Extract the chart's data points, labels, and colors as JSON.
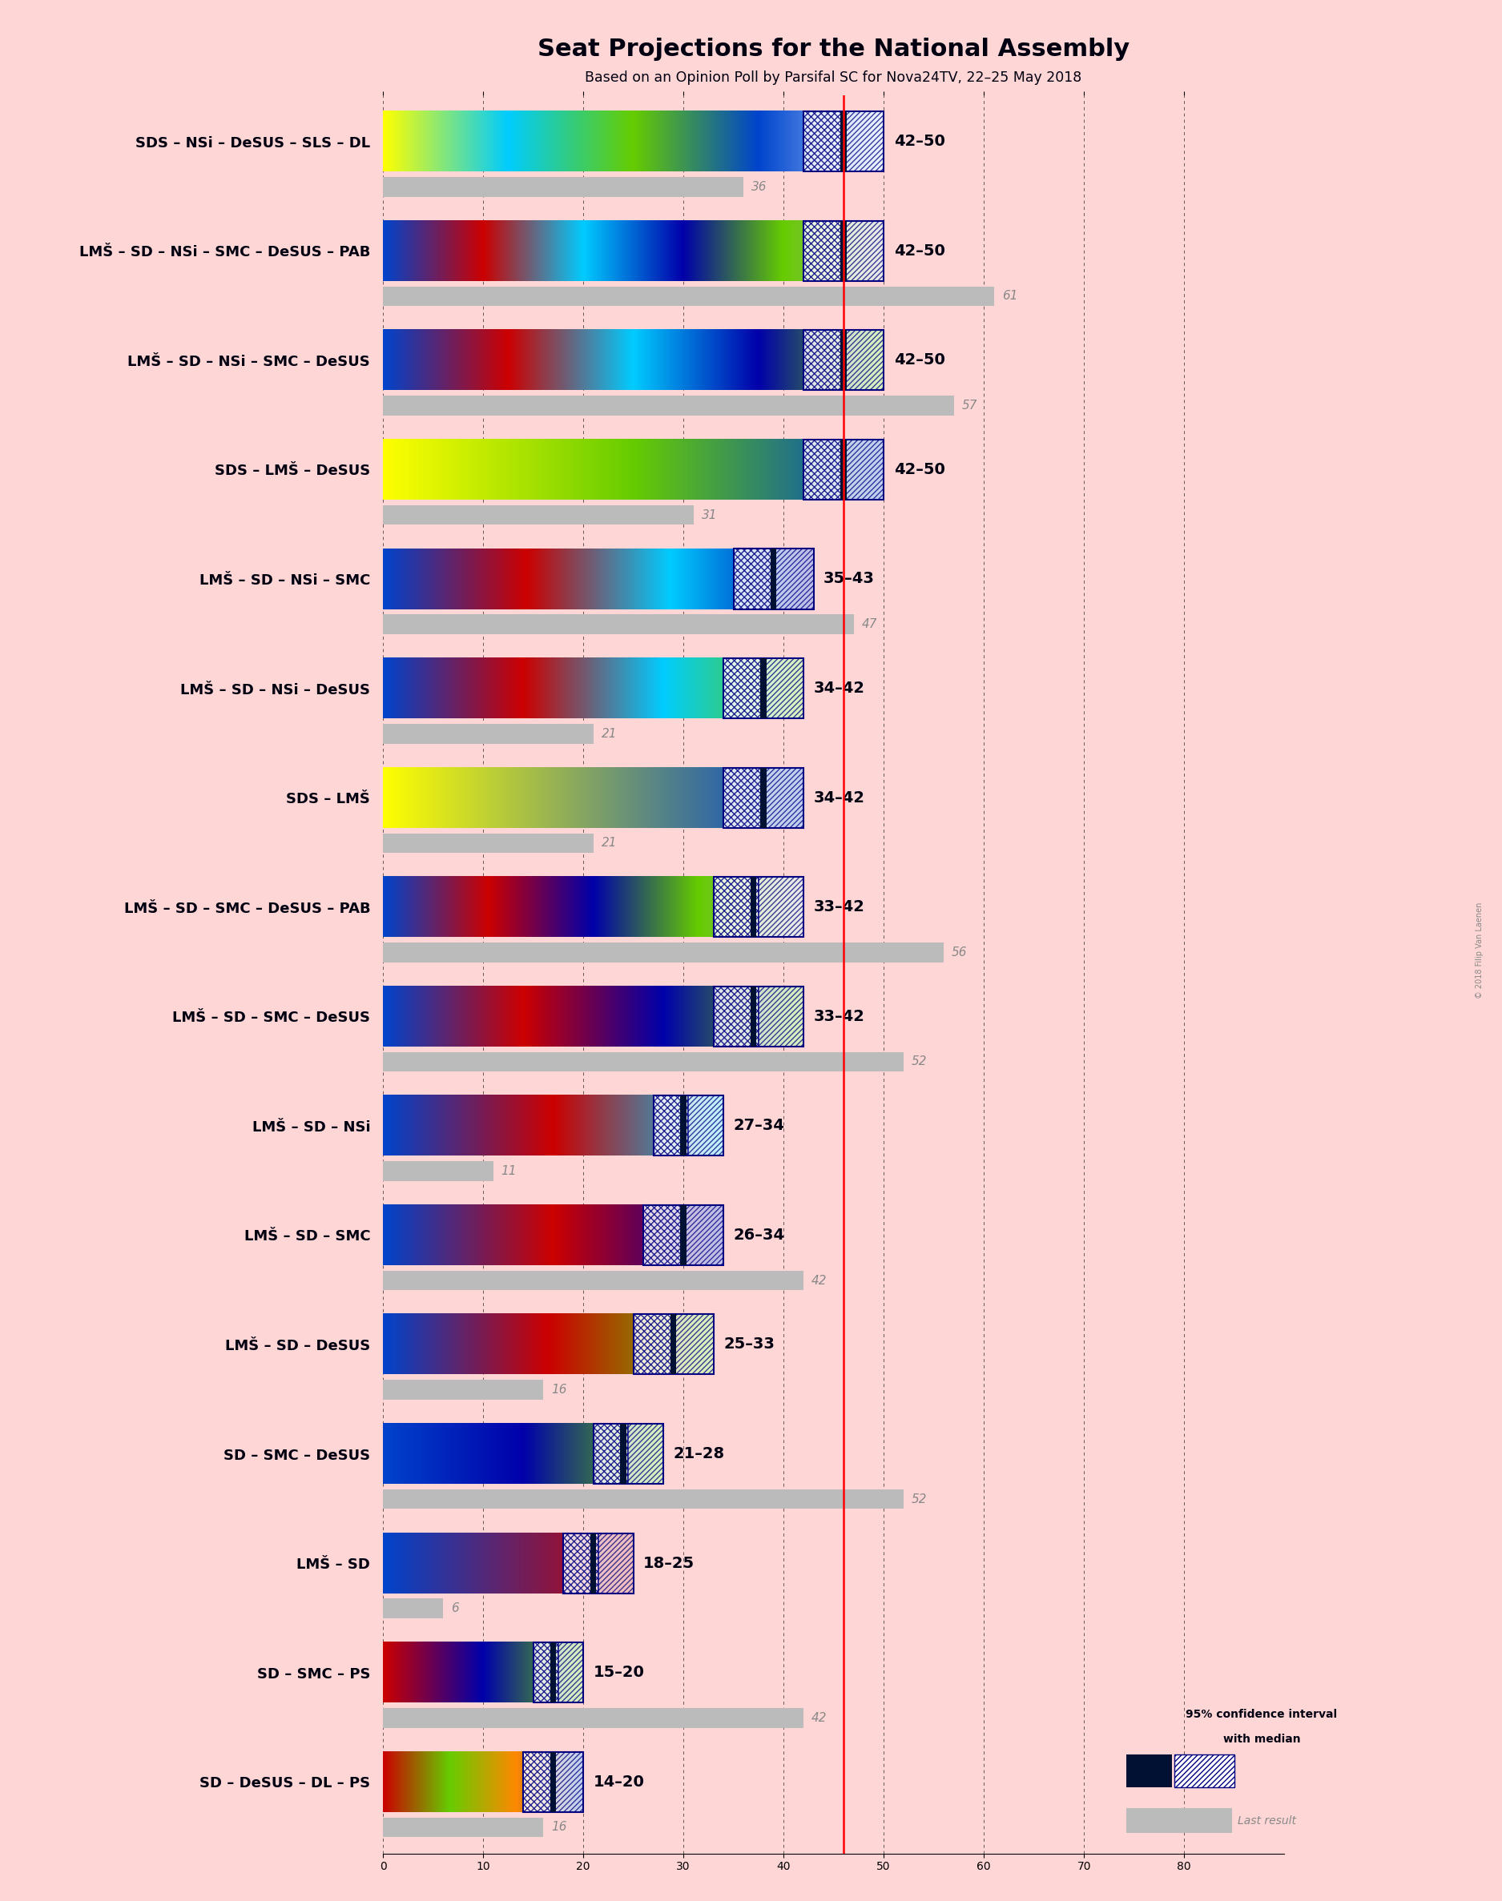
{
  "title": "Seat Projections for the National Assembly",
  "subtitle": "Based on an Opinion Poll by Parsifal SC for Nova24TV, 22–25 May 2018",
  "background_color": "#ffd6d6",
  "coalitions": [
    {
      "name": "SDS – NSi – DeSUS – SLS – DL",
      "min": 42,
      "max": 50,
      "median": 46,
      "last": 36,
      "colors": [
        "#ffff00",
        "#00ccff",
        "#66cc00",
        "#0044cc",
        "#aaccff"
      ]
    },
    {
      "name": "LMŠ – SD – NSi – SMC – DeSUS – PAB",
      "min": 42,
      "max": 50,
      "median": 46,
      "last": 61,
      "colors": [
        "#0044cc",
        "#cc0000",
        "#00ccff",
        "#0000aa",
        "#66cc00",
        "#aaaaaa"
      ]
    },
    {
      "name": "LMŠ – SD – NSi – SMC – DeSUS",
      "min": 42,
      "max": 50,
      "median": 46,
      "last": 57,
      "colors": [
        "#0044cc",
        "#cc0000",
        "#00ccff",
        "#0000aa",
        "#66cc00"
      ]
    },
    {
      "name": "SDS – LMŠ – DeSUS",
      "min": 42,
      "max": 50,
      "median": 46,
      "last": 31,
      "colors": [
        "#ffff00",
        "#66cc00",
        "#0044cc"
      ]
    },
    {
      "name": "LMŠ – SD – NSi – SMC",
      "min": 35,
      "max": 43,
      "median": 39,
      "last": 47,
      "colors": [
        "#0044cc",
        "#cc0000",
        "#00ccff",
        "#0000aa"
      ]
    },
    {
      "name": "LMŠ – SD – NSi – DeSUS",
      "min": 34,
      "max": 42,
      "median": 38,
      "last": 21,
      "colors": [
        "#0044cc",
        "#cc0000",
        "#00ccff",
        "#66cc00"
      ]
    },
    {
      "name": "SDS – LMŠ",
      "min": 34,
      "max": 42,
      "median": 38,
      "last": 21,
      "colors": [
        "#ffff00",
        "#0044cc"
      ]
    },
    {
      "name": "LMŠ – SD – SMC – DeSUS – PAB",
      "min": 33,
      "max": 42,
      "median": 37,
      "last": 56,
      "colors": [
        "#0044cc",
        "#cc0000",
        "#0000aa",
        "#66cc00",
        "#aaaaaa"
      ]
    },
    {
      "name": "LMŠ – SD – SMC – DeSUS",
      "min": 33,
      "max": 42,
      "median": 37,
      "last": 52,
      "colors": [
        "#0044cc",
        "#cc0000",
        "#0000aa",
        "#66cc00"
      ]
    },
    {
      "name": "LMŠ – SD – NSi",
      "min": 27,
      "max": 34,
      "median": 30,
      "last": 11,
      "colors": [
        "#0044cc",
        "#cc0000",
        "#00ccff"
      ]
    },
    {
      "name": "LMŠ – SD – SMC",
      "min": 26,
      "max": 34,
      "median": 30,
      "last": 42,
      "colors": [
        "#0044cc",
        "#cc0000",
        "#0000aa"
      ]
    },
    {
      "name": "LMŠ – SD – DeSUS",
      "min": 25,
      "max": 33,
      "median": 29,
      "last": 16,
      "colors": [
        "#0044cc",
        "#cc0000",
        "#66cc00"
      ]
    },
    {
      "name": "SD – SMC – DeSUS",
      "min": 21,
      "max": 28,
      "median": 24,
      "last": 52,
      "colors": [
        "#0044cc",
        "#0000aa",
        "#66cc00"
      ]
    },
    {
      "name": "LMŠ – SD",
      "min": 18,
      "max": 25,
      "median": 21,
      "last": 6,
      "colors": [
        "#0044cc",
        "#cc0000"
      ]
    },
    {
      "name": "SD – SMC – PS",
      "min": 15,
      "max": 20,
      "median": 17,
      "last": 42,
      "colors": [
        "#cc0000",
        "#0000aa",
        "#66cc00"
      ]
    },
    {
      "name": "SD – DeSUS – DL – PS",
      "min": 14,
      "max": 20,
      "median": 17,
      "last": 16,
      "colors": [
        "#cc0000",
        "#66cc00",
        "#ff8800",
        "#0044cc"
      ]
    }
  ],
  "majority_line": 46,
  "xlim": [
    0,
    90
  ],
  "x_ticks": [
    0,
    10,
    20,
    30,
    40,
    50,
    60,
    70,
    80
  ],
  "copyright": "© 2018 Filip Van Laenen"
}
